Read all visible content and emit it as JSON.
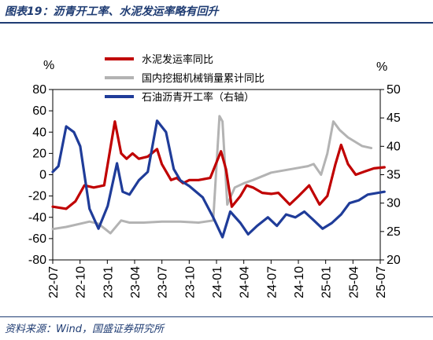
{
  "header": {
    "title": "图表19：沥青开工率、水泥发运率略有回升"
  },
  "footer": {
    "source": "资料来源：Wind，国盛证券研究所"
  },
  "chart_data": {
    "type": "line",
    "y_left_unit": "%",
    "y_right_unit": "%",
    "ylim_left": [
      -80,
      80
    ],
    "ylim_right": [
      20,
      50
    ],
    "yticks_left": [
      "80",
      "60",
      "40",
      "20",
      "0",
      "-20",
      "-40",
      "-60",
      "-80"
    ],
    "yticks_right": [
      "50",
      "45",
      "40",
      "35",
      "30",
      "25",
      "20"
    ],
    "x_range": [
      "2022-07",
      "2025-07"
    ],
    "xticks": [
      "22-07",
      "22-10",
      "23-01",
      "23-04",
      "23-07",
      "23-10",
      "24-01",
      "24-04",
      "24-07",
      "24-10",
      "25-01",
      "25-04",
      "25-07"
    ],
    "legend_position": "top",
    "series": [
      {
        "name": "水泥发运率同比",
        "axis": "left",
        "color": "#c00000",
        "points": [
          [
            "2022-07-01",
            -30
          ],
          [
            "2022-08-15",
            -32
          ],
          [
            "2022-09-15",
            -25
          ],
          [
            "2022-10-15",
            -10
          ],
          [
            "2022-11-15",
            -12
          ],
          [
            "2022-12-20",
            -10
          ],
          [
            "2023-01-25",
            50
          ],
          [
            "2023-02-15",
            20
          ],
          [
            "2023-03-05",
            15
          ],
          [
            "2023-03-25",
            20
          ],
          [
            "2023-04-15",
            15
          ],
          [
            "2023-05-15",
            17
          ],
          [
            "2023-06-15",
            24
          ],
          [
            "2023-07-01",
            10
          ],
          [
            "2023-08-01",
            -5
          ],
          [
            "2023-08-20",
            -3
          ],
          [
            "2023-09-10",
            -8
          ],
          [
            "2023-10-01",
            -5
          ],
          [
            "2023-11-01",
            -5
          ],
          [
            "2023-12-10",
            -3
          ],
          [
            "2024-01-15",
            22
          ],
          [
            "2024-02-01",
            5
          ],
          [
            "2024-02-20",
            -30
          ],
          [
            "2024-03-20",
            -20
          ],
          [
            "2024-04-10",
            -10
          ],
          [
            "2024-05-01",
            -12
          ],
          [
            "2024-06-01",
            -17
          ],
          [
            "2024-07-01",
            -18
          ],
          [
            "2024-07-25",
            -17
          ],
          [
            "2024-09-01",
            -28
          ],
          [
            "2024-10-01",
            -20
          ],
          [
            "2024-11-05",
            -10
          ],
          [
            "2024-12-10",
            -28
          ],
          [
            "2025-01-05",
            -20
          ],
          [
            "2025-02-01",
            10
          ],
          [
            "2025-02-20",
            28
          ],
          [
            "2025-03-15",
            10
          ],
          [
            "2025-04-10",
            0
          ],
          [
            "2025-05-10",
            3
          ],
          [
            "2025-06-10",
            6
          ],
          [
            "2025-07-15",
            7
          ]
        ]
      },
      {
        "name": "国内挖掘机械销量累计同比",
        "axis": "left",
        "color": "#b3b3b3",
        "points": [
          [
            "2022-07-01",
            -51
          ],
          [
            "2022-08-15",
            -49
          ],
          [
            "2022-10-01",
            -46
          ],
          [
            "2022-11-01",
            -44
          ],
          [
            "2022-12-01",
            -46
          ],
          [
            "2023-01-10",
            -55
          ],
          [
            "2023-02-15",
            -43
          ],
          [
            "2023-03-15",
            -45
          ],
          [
            "2023-05-01",
            -45
          ],
          [
            "2023-07-01",
            -44
          ],
          [
            "2023-09-01",
            -44
          ],
          [
            "2023-11-01",
            -45
          ],
          [
            "2023-12-20",
            -43
          ],
          [
            "2024-01-10",
            55
          ],
          [
            "2024-01-20",
            50
          ],
          [
            "2024-02-05",
            -28
          ],
          [
            "2024-03-01",
            -12
          ],
          [
            "2024-04-01",
            -8
          ],
          [
            "2024-05-01",
            -5
          ],
          [
            "2024-07-01",
            2
          ],
          [
            "2024-09-01",
            5
          ],
          [
            "2024-11-01",
            8
          ],
          [
            "2024-11-20",
            10
          ],
          [
            "2024-12-15",
            0
          ],
          [
            "2025-01-05",
            20
          ],
          [
            "2025-01-25",
            50
          ],
          [
            "2025-02-15",
            42
          ],
          [
            "2025-03-15",
            35
          ],
          [
            "2025-05-01",
            27
          ],
          [
            "2025-06-01",
            25
          ]
        ]
      },
      {
        "name": "石油沥青开工率（右轴）",
        "axis": "right",
        "color": "#1f3c99",
        "points": [
          [
            "2022-07-01",
            35.5
          ],
          [
            "2022-07-20",
            36.5
          ],
          [
            "2022-08-15",
            43.5
          ],
          [
            "2022-09-10",
            42.5
          ],
          [
            "2022-10-01",
            40
          ],
          [
            "2022-11-01",
            29
          ],
          [
            "2022-12-01",
            25.5
          ],
          [
            "2023-01-01",
            29.5
          ],
          [
            "2023-02-01",
            37
          ],
          [
            "2023-02-20",
            32
          ],
          [
            "2023-03-15",
            31.5
          ],
          [
            "2023-04-15",
            34
          ],
          [
            "2023-05-15",
            35.5
          ],
          [
            "2023-06-15",
            44.5
          ],
          [
            "2023-07-15",
            42.5
          ],
          [
            "2023-08-10",
            36
          ],
          [
            "2023-09-01",
            34
          ],
          [
            "2023-10-01",
            33
          ],
          [
            "2023-11-15",
            31
          ],
          [
            "2023-12-20",
            27.5
          ],
          [
            "2024-01-20",
            24
          ],
          [
            "2024-02-15",
            28.5
          ],
          [
            "2024-03-20",
            26.5
          ],
          [
            "2024-04-15",
            24.5
          ],
          [
            "2024-05-15",
            26
          ],
          [
            "2024-06-20",
            27.5
          ],
          [
            "2024-07-20",
            26
          ],
          [
            "2024-08-20",
            28
          ],
          [
            "2024-09-20",
            27.5
          ],
          [
            "2024-10-20",
            28.5
          ],
          [
            "2024-11-20",
            27
          ],
          [
            "2024-12-20",
            25.5
          ],
          [
            "2025-01-20",
            26.5
          ],
          [
            "2025-02-20",
            28
          ],
          [
            "2025-03-20",
            30
          ],
          [
            "2025-04-20",
            30.5
          ],
          [
            "2025-05-20",
            31.5
          ],
          [
            "2025-07-15",
            32
          ]
        ]
      }
    ]
  }
}
